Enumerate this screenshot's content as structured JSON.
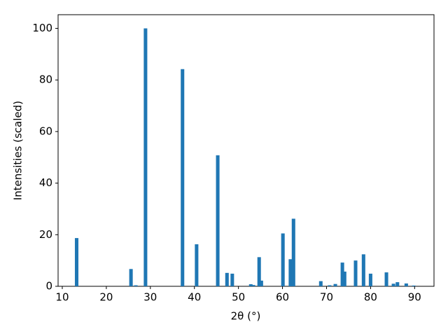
{
  "chart_data": {
    "type": "bar",
    "xlabel": "2θ (°)",
    "ylabel": "Intensities (scaled)",
    "x": [
      13.26,
      25.6,
      26.7,
      28.9,
      37.3,
      40.5,
      45.3,
      47.4,
      48.6,
      52.8,
      53.4,
      54.7,
      55.2,
      60.1,
      61.8,
      62.5,
      68.7,
      70.7,
      72.0,
      73.6,
      74.1,
      76.6,
      78.4,
      80.0,
      83.6,
      85.2,
      86.1,
      88.1,
      89.8
    ],
    "values": [
      18.7,
      6.7,
      0.4,
      100,
      84.2,
      16.3,
      50.8,
      5.2,
      4.9,
      0.8,
      0.5,
      11.3,
      2.2,
      20.5,
      10.5,
      26.2,
      2,
      0.4,
      0.9,
      9.2,
      5.7,
      10,
      12.4,
      4.9,
      5.4,
      1,
      1.6,
      1.1,
      0.3
    ],
    "color": "#1f77b4",
    "xlim": [
      9.05,
      94.4
    ],
    "ylim": [
      0,
      105.3
    ],
    "xticks": [
      10,
      20,
      30,
      40,
      50,
      60,
      70,
      80,
      90
    ],
    "yticks": [
      0,
      20,
      40,
      60,
      80,
      100
    ],
    "grid": false
  }
}
